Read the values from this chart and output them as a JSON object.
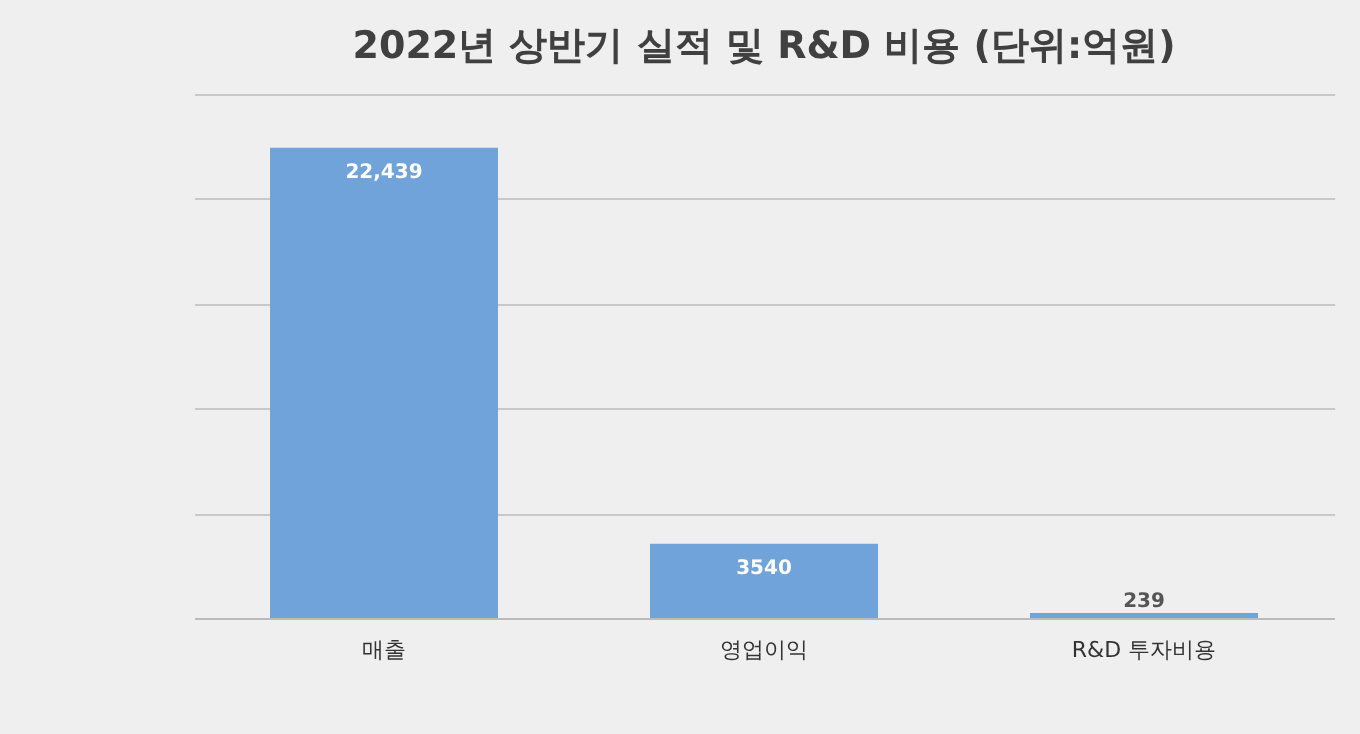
{
  "chart_data": {
    "type": "bar",
    "title": "2022년 상반기 실적 및 R&D 비용 (단위:억원)",
    "categories": [
      "매출",
      "영업이익",
      "R&D 투자비용"
    ],
    "values": [
      22439,
      3540,
      239
    ],
    "value_labels": [
      "22,439",
      "3540",
      "239"
    ],
    "color": "#6fa3d9",
    "ylim": [
      0,
      25000
    ],
    "yticks": [
      {
        "value": 0,
        "label": null
      },
      {
        "value": 5000,
        "label": null
      },
      {
        "value": 10000,
        "label": null
      },
      {
        "value": 15000,
        "label": null
      },
      {
        "value": 20000,
        "label": null
      },
      {
        "value": 25000,
        "label": null
      }
    ],
    "grid": "y",
    "tick_labels": "x"
  }
}
